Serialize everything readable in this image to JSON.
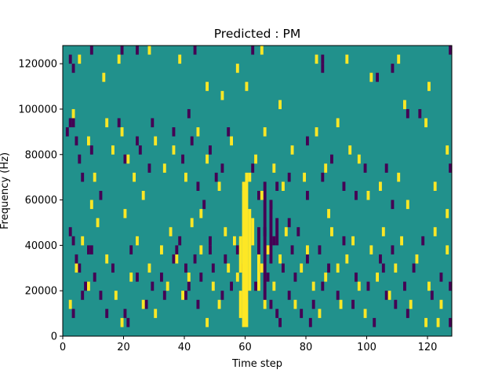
{
  "chart_data": {
    "type": "heatmap",
    "title": "Predicted : PM",
    "xlabel": "Time step",
    "ylabel": "Frequency (Hz)",
    "xlim": [
      0,
      128
    ],
    "ylim": [
      0,
      128000
    ],
    "x_ticks": [
      0,
      20,
      40,
      60,
      80,
      100,
      120
    ],
    "y_ticks": [
      0,
      20000,
      40000,
      60000,
      80000,
      100000,
      120000
    ],
    "x_tick_labels": [
      "0",
      "20",
      "40",
      "60",
      "80",
      "100",
      "120"
    ],
    "y_tick_labels": [
      "0",
      "20000",
      "40000",
      "60000",
      "80000",
      "100000",
      "120000"
    ],
    "grid": false,
    "values_legend": {
      "-1": "low (dark purple)",
      "0": "background (teal)",
      "1": "high (yellow)"
    },
    "colors": {
      "background": "#21918c",
      "low": "#440154",
      "high": "#fde725"
    },
    "row_height_hz": 4000,
    "low_cells": [
      [
        2,
        120000
      ],
      [
        3,
        116000
      ],
      [
        9,
        124000
      ],
      [
        19,
        124000
      ],
      [
        24,
        124000
      ],
      [
        43,
        124000
      ],
      [
        62,
        124000
      ],
      [
        85,
        120000
      ],
      [
        85,
        116000
      ],
      [
        103,
        112000
      ],
      [
        108,
        116000
      ],
      [
        127,
        124000
      ],
      [
        1,
        88000
      ],
      [
        2,
        92000
      ],
      [
        3,
        92000
      ],
      [
        4,
        84000
      ],
      [
        5,
        76000
      ],
      [
        6,
        68000
      ],
      [
        9,
        80000
      ],
      [
        12,
        60000
      ],
      [
        18,
        92000
      ],
      [
        20,
        76000
      ],
      [
        24,
        84000
      ],
      [
        25,
        80000
      ],
      [
        28,
        72000
      ],
      [
        29,
        92000
      ],
      [
        36,
        88000
      ],
      [
        39,
        76000
      ],
      [
        41,
        96000
      ],
      [
        42,
        84000
      ],
      [
        44,
        64000
      ],
      [
        46,
        56000
      ],
      [
        48,
        80000
      ],
      [
        50,
        68000
      ],
      [
        52,
        72000
      ],
      [
        54,
        88000
      ],
      [
        59,
        64000
      ],
      [
        62,
        72000
      ],
      [
        64,
        60000
      ],
      [
        68,
        56000
      ],
      [
        70,
        64000
      ],
      [
        74,
        68000
      ],
      [
        80,
        84000
      ],
      [
        80,
        60000
      ],
      [
        85,
        68000
      ],
      [
        88,
        76000
      ],
      [
        92,
        64000
      ],
      [
        96,
        60000
      ],
      [
        99,
        72000
      ],
      [
        106,
        72000
      ],
      [
        108,
        56000
      ],
      [
        113,
        96000
      ],
      [
        117,
        96000
      ],
      [
        127,
        72000
      ],
      [
        2,
        44000
      ],
      [
        3,
        40000
      ],
      [
        4,
        32000
      ],
      [
        5,
        28000
      ],
      [
        7,
        20000
      ],
      [
        9,
        36000
      ],
      [
        10,
        24000
      ],
      [
        12,
        16000
      ],
      [
        16,
        28000
      ],
      [
        20,
        8000
      ],
      [
        21,
        4000
      ],
      [
        24,
        24000
      ],
      [
        27,
        12000
      ],
      [
        29,
        20000
      ],
      [
        32,
        24000
      ],
      [
        33,
        16000
      ],
      [
        36,
        32000
      ],
      [
        37,
        36000
      ],
      [
        38,
        40000
      ],
      [
        40,
        28000
      ],
      [
        40,
        16000
      ],
      [
        41,
        20000
      ],
      [
        43,
        32000
      ],
      [
        44,
        12000
      ],
      [
        45,
        24000
      ],
      [
        48,
        40000
      ],
      [
        48,
        36000
      ],
      [
        49,
        28000
      ],
      [
        52,
        16000
      ],
      [
        53,
        32000
      ],
      [
        55,
        20000
      ],
      [
        57,
        36000
      ],
      [
        59,
        28000
      ],
      [
        60,
        16000
      ],
      [
        63,
        20000
      ],
      [
        66,
        44000
      ],
      [
        67,
        24000
      ],
      [
        68,
        12000
      ],
      [
        69,
        40000
      ],
      [
        70,
        8000
      ],
      [
        71,
        4000
      ],
      [
        72,
        28000
      ],
      [
        74,
        16000
      ],
      [
        74,
        48000
      ],
      [
        75,
        36000
      ],
      [
        76,
        24000
      ],
      [
        77,
        44000
      ],
      [
        78,
        8000
      ],
      [
        80,
        32000
      ],
      [
        81,
        4000
      ],
      [
        82,
        12000
      ],
      [
        84,
        36000
      ],
      [
        85,
        20000
      ],
      [
        87,
        28000
      ],
      [
        90,
        16000
      ],
      [
        92,
        40000
      ],
      [
        95,
        12000
      ],
      [
        96,
        24000
      ],
      [
        100,
        20000
      ],
      [
        102,
        4000
      ],
      [
        104,
        32000
      ],
      [
        105,
        28000
      ],
      [
        106,
        16000
      ],
      [
        108,
        36000
      ],
      [
        109,
        12000
      ],
      [
        112,
        20000
      ],
      [
        113,
        8000
      ],
      [
        115,
        28000
      ],
      [
        118,
        40000
      ],
      [
        121,
        16000
      ],
      [
        124,
        24000
      ],
      [
        127,
        20000
      ],
      [
        127,
        4000
      ],
      [
        3,
        8000
      ],
      [
        6,
        16000
      ],
      [
        8,
        36000
      ],
      [
        14,
        8000
      ],
      [
        22,
        36000
      ]
    ],
    "high_cells": [
      [
        5,
        120000
      ],
      [
        13,
        112000
      ],
      [
        18,
        120000
      ],
      [
        28,
        124000
      ],
      [
        38,
        120000
      ],
      [
        47,
        108000
      ],
      [
        52,
        104000
      ],
      [
        57,
        116000
      ],
      [
        60,
        108000
      ],
      [
        65,
        124000
      ],
      [
        71,
        100000
      ],
      [
        83,
        120000
      ],
      [
        93,
        120000
      ],
      [
        101,
        112000
      ],
      [
        110,
        120000
      ],
      [
        112,
        100000
      ],
      [
        120,
        108000
      ],
      [
        3,
        96000
      ],
      [
        8,
        84000
      ],
      [
        10,
        68000
      ],
      [
        14,
        92000
      ],
      [
        16,
        80000
      ],
      [
        19,
        88000
      ],
      [
        21,
        76000
      ],
      [
        23,
        68000
      ],
      [
        26,
        60000
      ],
      [
        30,
        84000
      ],
      [
        33,
        72000
      ],
      [
        36,
        80000
      ],
      [
        40,
        68000
      ],
      [
        44,
        88000
      ],
      [
        47,
        76000
      ],
      [
        51,
        64000
      ],
      [
        55,
        84000
      ],
      [
        61,
        68000
      ],
      [
        63,
        76000
      ],
      [
        66,
        88000
      ],
      [
        69,
        72000
      ],
      [
        72,
        64000
      ],
      [
        75,
        80000
      ],
      [
        79,
        68000
      ],
      [
        83,
        88000
      ],
      [
        86,
        72000
      ],
      [
        90,
        92000
      ],
      [
        94,
        80000
      ],
      [
        97,
        76000
      ],
      [
        100,
        60000
      ],
      [
        104,
        64000
      ],
      [
        110,
        68000
      ],
      [
        113,
        56000
      ],
      [
        119,
        92000
      ],
      [
        122,
        64000
      ],
      [
        126,
        80000
      ],
      [
        126,
        52000
      ],
      [
        2,
        12000
      ],
      [
        4,
        28000
      ],
      [
        6,
        40000
      ],
      [
        8,
        20000
      ],
      [
        11,
        48000
      ],
      [
        14,
        32000
      ],
      [
        17,
        16000
      ],
      [
        19,
        4000
      ],
      [
        22,
        24000
      ],
      [
        24,
        40000
      ],
      [
        26,
        12000
      ],
      [
        28,
        28000
      ],
      [
        30,
        8000
      ],
      [
        32,
        36000
      ],
      [
        34,
        20000
      ],
      [
        35,
        44000
      ],
      [
        37,
        32000
      ],
      [
        39,
        16000
      ],
      [
        41,
        24000
      ],
      [
        42,
        48000
      ],
      [
        45,
        36000
      ],
      [
        47,
        4000
      ],
      [
        49,
        20000
      ],
      [
        51,
        12000
      ],
      [
        53,
        44000
      ],
      [
        54,
        28000
      ],
      [
        56,
        40000
      ],
      [
        57,
        24000
      ],
      [
        65,
        28000
      ],
      [
        66,
        12000
      ],
      [
        67,
        36000
      ],
      [
        69,
        20000
      ],
      [
        71,
        32000
      ],
      [
        73,
        44000
      ],
      [
        76,
        12000
      ],
      [
        78,
        28000
      ],
      [
        80,
        36000
      ],
      [
        82,
        20000
      ],
      [
        84,
        8000
      ],
      [
        86,
        24000
      ],
      [
        88,
        44000
      ],
      [
        90,
        28000
      ],
      [
        91,
        12000
      ],
      [
        93,
        32000
      ],
      [
        95,
        40000
      ],
      [
        97,
        20000
      ],
      [
        99,
        8000
      ],
      [
        101,
        36000
      ],
      [
        103,
        24000
      ],
      [
        105,
        44000
      ],
      [
        107,
        16000
      ],
      [
        109,
        28000
      ],
      [
        111,
        40000
      ],
      [
        114,
        12000
      ],
      [
        116,
        32000
      ],
      [
        119,
        4000
      ],
      [
        120,
        20000
      ],
      [
        122,
        44000
      ],
      [
        124,
        12000
      ],
      [
        126,
        36000
      ],
      [
        9,
        56000
      ],
      [
        20,
        52000
      ],
      [
        45,
        52000
      ],
      [
        87,
        52000
      ],
      [
        123,
        4000
      ]
    ],
    "high_spans": [
      [
        58,
        8000,
        16000
      ],
      [
        58,
        28000,
        40000
      ],
      [
        59,
        4000,
        64000
      ],
      [
        60,
        4000,
        68000
      ],
      [
        61,
        20000,
        52000
      ],
      [
        62,
        40000,
        48000
      ],
      [
        64,
        20000,
        32000
      ],
      [
        65,
        60000,
        60000
      ]
    ],
    "low_spans": [
      [
        64,
        24000,
        44000
      ],
      [
        66,
        16000,
        64000
      ],
      [
        68,
        32000,
        56000
      ],
      [
        70,
        40000,
        48000
      ]
    ]
  }
}
